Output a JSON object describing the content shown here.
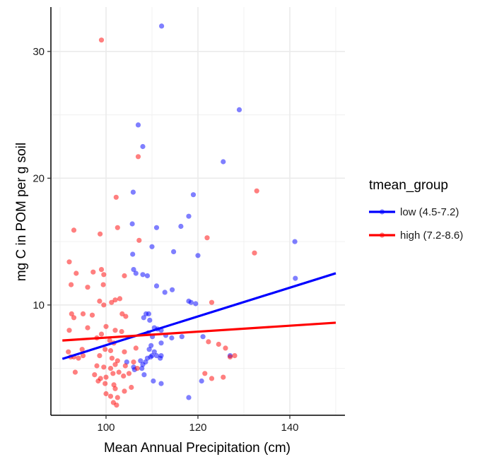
{
  "chart_data": {
    "type": "scatter",
    "xlabel": "Mean Annual Precipitation (cm)",
    "ylabel": "mg C in POM per g soil",
    "xlim": [
      88,
      152
    ],
    "ylim": [
      1.3,
      33.5
    ],
    "xticks": [
      100,
      120,
      140
    ],
    "yticks": [
      10,
      20,
      30
    ],
    "grid": true,
    "legend": {
      "title": "tmean_group",
      "position": "right"
    },
    "colors": {
      "low (4.5-7.2)": "#0000ff",
      "high (7.2-8.6)": "#ff0000"
    },
    "series": [
      {
        "name": "low (4.5-7.2)",
        "color": "#0000ff",
        "points": [
          [
            112.1,
            32.0
          ],
          [
            129.0,
            25.4
          ],
          [
            107.0,
            24.2
          ],
          [
            108.0,
            22.5
          ],
          [
            125.5,
            21.3
          ],
          [
            105.9,
            18.9
          ],
          [
            119.0,
            18.7
          ],
          [
            118.0,
            17.0
          ],
          [
            105.7,
            16.4
          ],
          [
            111.0,
            16.1
          ],
          [
            116.3,
            16.2
          ],
          [
            141.1,
            15.0
          ],
          [
            110.0,
            14.6
          ],
          [
            105.8,
            14.0
          ],
          [
            114.7,
            14.2
          ],
          [
            120.0,
            13.9
          ],
          [
            106.5,
            12.5
          ],
          [
            108.0,
            12.4
          ],
          [
            109.0,
            12.3
          ],
          [
            106.0,
            12.8
          ],
          [
            141.2,
            12.1
          ],
          [
            111.0,
            11.5
          ],
          [
            112.8,
            11.0
          ],
          [
            114.4,
            11.2
          ],
          [
            118.0,
            10.3
          ],
          [
            118.5,
            10.2
          ],
          [
            119.5,
            10.1
          ],
          [
            108.7,
            9.3
          ],
          [
            109.3,
            9.3
          ],
          [
            108.2,
            9.0
          ],
          [
            109.5,
            8.8
          ],
          [
            110.5,
            8.2
          ],
          [
            111.2,
            8.1
          ],
          [
            112.0,
            8.0
          ],
          [
            109.2,
            7.8
          ],
          [
            110.1,
            7.5
          ],
          [
            113.0,
            7.6
          ],
          [
            114.3,
            7.4
          ],
          [
            116.5,
            7.5
          ],
          [
            121.1,
            7.5
          ],
          [
            109.8,
            6.8
          ],
          [
            112.0,
            7.0
          ],
          [
            109.4,
            6.5
          ],
          [
            110.5,
            6.3
          ],
          [
            110.0,
            6.0
          ],
          [
            111.0,
            6.0
          ],
          [
            112.0,
            6.0
          ],
          [
            109.0,
            5.8
          ],
          [
            108.6,
            5.5
          ],
          [
            107.5,
            5.6
          ],
          [
            108.0,
            5.3
          ],
          [
            109.7,
            5.9
          ],
          [
            111.8,
            5.8
          ],
          [
            127.0,
            6.0
          ],
          [
            104.5,
            5.5
          ],
          [
            106.0,
            5.1
          ],
          [
            108.3,
            4.5
          ],
          [
            110.3,
            4.0
          ],
          [
            112.0,
            3.8
          ],
          [
            120.8,
            4.0
          ],
          [
            118.0,
            2.7
          ],
          [
            106.2,
            4.9
          ],
          [
            107.8,
            5.0
          ]
        ]
      },
      {
        "name": "high (7.2-8.6)",
        "color": "#ff0000",
        "points": [
          [
            99.0,
            30.9
          ],
          [
            132.8,
            19.0
          ],
          [
            107.0,
            21.7
          ],
          [
            102.2,
            18.5
          ],
          [
            93.0,
            15.9
          ],
          [
            98.7,
            15.6
          ],
          [
            102.5,
            16.1
          ],
          [
            107.2,
            15.1
          ],
          [
            122.0,
            15.3
          ],
          [
            132.3,
            14.1
          ],
          [
            92.0,
            13.4
          ],
          [
            104.0,
            12.3
          ],
          [
            93.5,
            12.5
          ],
          [
            99.0,
            12.8
          ],
          [
            99.5,
            12.4
          ],
          [
            97.2,
            12.6
          ],
          [
            92.4,
            11.6
          ],
          [
            96.0,
            11.4
          ],
          [
            99.4,
            11.6
          ],
          [
            102.0,
            10.4
          ],
          [
            103.0,
            10.5
          ],
          [
            98.6,
            10.3
          ],
          [
            99.5,
            10.0
          ],
          [
            101.2,
            10.2
          ],
          [
            123.0,
            10.2
          ],
          [
            92.5,
            9.3
          ],
          [
            93.0,
            9.0
          ],
          [
            95.0,
            9.3
          ],
          [
            97.0,
            9.2
          ],
          [
            103.5,
            9.3
          ],
          [
            104.3,
            9.1
          ],
          [
            92.0,
            8.0
          ],
          [
            96.0,
            8.2
          ],
          [
            100.0,
            8.3
          ],
          [
            102.0,
            8.0
          ],
          [
            103.4,
            7.9
          ],
          [
            99.0,
            7.7
          ],
          [
            98.0,
            7.4
          ],
          [
            100.8,
            7.2
          ],
          [
            101.7,
            7.0
          ],
          [
            94.8,
            6.5
          ],
          [
            91.8,
            6.3
          ],
          [
            95.0,
            6.0
          ],
          [
            99.8,
            6.5
          ],
          [
            101.0,
            6.4
          ],
          [
            104.0,
            6.3
          ],
          [
            106.5,
            6.6
          ],
          [
            98.6,
            6.0
          ],
          [
            101.3,
            5.8
          ],
          [
            102.5,
            5.6
          ],
          [
            93.0,
            5.9
          ],
          [
            94.0,
            5.8
          ],
          [
            92.3,
            5.9
          ],
          [
            93.3,
            4.7
          ],
          [
            98.0,
            5.2
          ],
          [
            99.5,
            5.1
          ],
          [
            101.0,
            5.0
          ],
          [
            102.0,
            5.3
          ],
          [
            104.2,
            5.2
          ],
          [
            106.0,
            5.5
          ],
          [
            97.5,
            4.5
          ],
          [
            98.8,
            4.2
          ],
          [
            100.0,
            4.3
          ],
          [
            101.5,
            4.6
          ],
          [
            102.8,
            4.7
          ],
          [
            103.8,
            4.4
          ],
          [
            105.0,
            4.6
          ],
          [
            106.8,
            5.0
          ],
          [
            98.3,
            4.0
          ],
          [
            99.8,
            3.8
          ],
          [
            101.7,
            3.7
          ],
          [
            102.0,
            3.4
          ],
          [
            100.0,
            3.0
          ],
          [
            101.0,
            2.8
          ],
          [
            102.5,
            2.7
          ],
          [
            104.0,
            3.2
          ],
          [
            105.5,
            3.5
          ],
          [
            101.6,
            2.3
          ],
          [
            102.3,
            2.1
          ],
          [
            122.3,
            7.1
          ],
          [
            124.5,
            6.9
          ],
          [
            126.0,
            6.6
          ],
          [
            121.5,
            4.6
          ],
          [
            123.0,
            4.2
          ],
          [
            125.5,
            4.3
          ],
          [
            127.0,
            5.9
          ],
          [
            128.0,
            6.0
          ]
        ]
      }
    ],
    "fits": [
      {
        "series": "low (4.5-7.2)",
        "x": [
          90.5,
          150
        ],
        "y": [
          5.75,
          12.5
        ]
      },
      {
        "series": "high (7.2-8.6)",
        "x": [
          90.5,
          150
        ],
        "y": [
          7.2,
          8.6
        ]
      }
    ]
  }
}
